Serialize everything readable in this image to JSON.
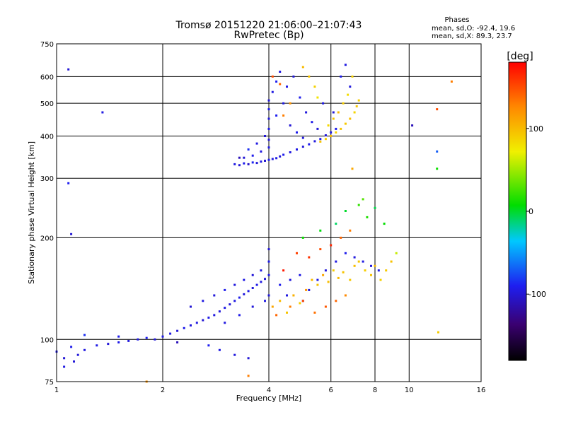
{
  "chart_data": {
    "type": "scatter",
    "title": "Tromsø 20151220 21:06:00–21:07:43",
    "subtitle": "RwPretec (Bp)",
    "xlabel": "Frequency [MHz]",
    "ylabel": "Stationary phase Virtual Height [km]",
    "x_scale": "log",
    "y_scale": "log",
    "xlim": [
      1,
      16
    ],
    "ylim": [
      75,
      750
    ],
    "x_ticks": [
      1,
      2,
      4,
      6,
      8,
      10,
      16
    ],
    "x_tick_labels": [
      "1",
      "2",
      "4",
      "6",
      "8",
      "10",
      "16"
    ],
    "y_ticks": [
      75,
      100,
      200,
      300,
      400,
      500,
      600,
      750
    ],
    "y_tick_labels": [
      "75",
      "100",
      "200",
      "300",
      "400",
      "500",
      "600",
      "750"
    ],
    "grid": true,
    "phases_box": {
      "title": "Phases",
      "line1": "mean, sd,O: -92.4, 19.6",
      "line2": "mean, sd,X:  89.3, 23.7"
    },
    "colorbar": {
      "label": "[deg]",
      "range": [
        -180,
        180
      ],
      "ticks": [
        100,
        0,
        -100
      ],
      "tick_labels": [
        "100",
        "0",
        "-100"
      ],
      "colors": [
        "#000000",
        "#3a0070",
        "#1e1ef0",
        "#00c8ff",
        "#00dd00",
        "#f0f000",
        "#ff8800",
        "#ff0000"
      ]
    },
    "series": [
      {
        "group": "F-region O-mode",
        "points": [
          [
            3.2,
            330,
            -95
          ],
          [
            3.3,
            328,
            -100
          ],
          [
            3.4,
            332,
            -92
          ],
          [
            3.5,
            330,
            -105
          ],
          [
            3.6,
            334,
            -88
          ],
          [
            3.7,
            333,
            -98
          ],
          [
            3.8,
            336,
            -95
          ],
          [
            3.9,
            338,
            -102
          ],
          [
            4.0,
            340,
            -90
          ],
          [
            4.1,
            342,
            -97
          ],
          [
            4.2,
            344,
            -93
          ],
          [
            4.3,
            348,
            -99
          ],
          [
            4.4,
            352,
            -91
          ],
          [
            4.6,
            358,
            -96
          ],
          [
            4.8,
            365,
            -94
          ],
          [
            5.0,
            372,
            -98
          ],
          [
            5.2,
            378,
            -92
          ],
          [
            5.4,
            386,
            -97
          ],
          [
            5.6,
            392,
            -93
          ],
          [
            5.8,
            402,
            -99
          ],
          [
            6.0,
            410,
            -95
          ],
          [
            6.2,
            420,
            -90
          ],
          [
            3.4,
            345,
            -100
          ],
          [
            3.6,
            350,
            -92
          ],
          [
            3.8,
            360,
            -96
          ],
          [
            4.0,
            370,
            -94
          ],
          [
            4.0,
            390,
            -98
          ],
          [
            4.0,
            420,
            -93
          ],
          [
            4.0,
            450,
            -97
          ],
          [
            4.0,
            480,
            -92
          ],
          [
            4.0,
            510,
            -99
          ],
          [
            4.1,
            540,
            -95
          ],
          [
            4.2,
            580,
            -90
          ],
          [
            4.3,
            620,
            -96
          ],
          [
            4.5,
            560,
            -94
          ],
          [
            4.7,
            600,
            -98
          ],
          [
            4.9,
            520,
            -92
          ],
          [
            5.1,
            470,
            -97
          ],
          [
            5.3,
            440,
            -93
          ],
          [
            5.5,
            420,
            -99
          ],
          [
            3.3,
            345,
            -110
          ],
          [
            3.5,
            365,
            -85
          ],
          [
            3.7,
            380,
            -95
          ],
          [
            3.9,
            400,
            -100
          ],
          [
            4.2,
            460,
            -90
          ],
          [
            4.4,
            500,
            -95
          ],
          [
            4.6,
            430,
            -100
          ],
          [
            4.8,
            410,
            -92
          ],
          [
            5.0,
            395,
            -97
          ],
          [
            5.7,
            500,
            -95
          ],
          [
            6.1,
            470,
            -100
          ],
          [
            6.4,
            600,
            -92
          ],
          [
            6.6,
            650,
            -95
          ],
          [
            6.8,
            560,
            -97
          ]
        ]
      },
      {
        "group": "F-region X-mode",
        "points": [
          [
            5.6,
            385,
            95
          ],
          [
            5.8,
            392,
            90
          ],
          [
            6.0,
            400,
            100
          ],
          [
            6.2,
            410,
            88
          ],
          [
            6.4,
            420,
            95
          ],
          [
            6.6,
            435,
            92
          ],
          [
            6.8,
            450,
            98
          ],
          [
            7.0,
            470,
            86
          ],
          [
            7.1,
            490,
            94
          ],
          [
            7.2,
            510,
            90
          ],
          [
            5.9,
            430,
            85
          ],
          [
            6.1,
            450,
            95
          ],
          [
            6.3,
            470,
            100
          ],
          [
            6.5,
            500,
            90
          ],
          [
            6.7,
            530,
            82
          ],
          [
            5.4,
            560,
            88
          ],
          [
            5.2,
            600,
            95
          ],
          [
            5.0,
            640,
            100
          ],
          [
            5.5,
            520,
            78
          ],
          [
            6.9,
            600,
            88
          ],
          [
            4.1,
            600,
            150
          ],
          [
            4.3,
            570,
            140
          ],
          [
            4.6,
            500,
            120
          ],
          [
            4.4,
            460,
            130
          ]
        ]
      },
      {
        "group": "E/F1 O-mode",
        "points": [
          [
            1.0,
            92,
            -95
          ],
          [
            1.05,
            88,
            -100
          ],
          [
            1.1,
            95,
            -92
          ],
          [
            1.15,
            90,
            -98
          ],
          [
            1.2,
            93,
            -96
          ],
          [
            1.3,
            96,
            -94
          ],
          [
            1.4,
            97,
            -99
          ],
          [
            1.5,
            98,
            -93
          ],
          [
            1.6,
            99,
            -97
          ],
          [
            1.7,
            100,
            -95
          ],
          [
            1.8,
            101,
            -90
          ],
          [
            1.9,
            100,
            -98
          ],
          [
            2.0,
            102,
            -94
          ],
          [
            2.1,
            104,
            -96
          ],
          [
            2.2,
            106,
            -99
          ],
          [
            2.3,
            108,
            -92
          ],
          [
            2.4,
            110,
            -97
          ],
          [
            2.5,
            112,
            -95
          ],
          [
            2.6,
            114,
            -100
          ],
          [
            2.7,
            116,
            -93
          ],
          [
            2.8,
            118,
            -96
          ],
          [
            2.9,
            121,
            -98
          ],
          [
            3.0,
            124,
            -94
          ],
          [
            3.1,
            127,
            -99
          ],
          [
            3.2,
            130,
            -95
          ],
          [
            3.3,
            133,
            -92
          ],
          [
            3.4,
            136,
            -97
          ],
          [
            3.5,
            139,
            -94
          ],
          [
            3.6,
            142,
            -98
          ],
          [
            3.7,
            145,
            -93
          ],
          [
            3.8,
            148,
            -96
          ],
          [
            3.9,
            151,
            -99
          ],
          [
            4.0,
            155,
            -95
          ],
          [
            2.4,
            125,
            -100
          ],
          [
            2.6,
            130,
            -95
          ],
          [
            2.8,
            135,
            -98
          ],
          [
            3.0,
            140,
            -92
          ],
          [
            3.2,
            145,
            -97
          ],
          [
            3.4,
            150,
            -94
          ],
          [
            3.6,
            155,
            -99
          ],
          [
            3.8,
            160,
            -95
          ],
          [
            3.0,
            112,
            -96
          ],
          [
            3.3,
            118,
            -93
          ],
          [
            3.6,
            125,
            -98
          ],
          [
            3.9,
            130,
            -95
          ],
          [
            4.0,
            135,
            -97
          ],
          [
            4.0,
            170,
            -92
          ],
          [
            4.0,
            185,
            -99
          ],
          [
            1.2,
            103,
            -85
          ],
          [
            1.5,
            102,
            -92
          ],
          [
            2.2,
            98,
            -110
          ],
          [
            2.7,
            96,
            -90
          ],
          [
            2.9,
            93,
            -95
          ],
          [
            3.2,
            90,
            -97
          ],
          [
            3.5,
            88,
            -100
          ],
          [
            1.05,
            83,
            -95
          ],
          [
            1.12,
            86,
            -99
          ],
          [
            4.3,
            145,
            -92
          ],
          [
            4.6,
            150,
            -97
          ],
          [
            4.9,
            155,
            -95
          ],
          [
            5.2,
            140,
            -99
          ],
          [
            5.5,
            150,
            -93
          ],
          [
            5.8,
            160,
            -98
          ],
          [
            6.2,
            170,
            -95
          ],
          [
            6.6,
            180,
            -92
          ],
          [
            7.0,
            175,
            -97
          ],
          [
            7.4,
            170,
            -95
          ],
          [
            7.8,
            165,
            -99
          ],
          [
            8.2,
            160,
            -93
          ],
          [
            4.5,
            135,
            -96
          ],
          [
            5.0,
            130,
            -94
          ]
        ]
      },
      {
        "group": "E/F1 X-mode",
        "points": [
          [
            4.1,
            125,
            110
          ],
          [
            4.3,
            130,
            100
          ],
          [
            4.5,
            120,
            95
          ],
          [
            4.7,
            135,
            105
          ],
          [
            4.9,
            128,
            90
          ],
          [
            5.1,
            140,
            120
          ],
          [
            5.3,
            150,
            100
          ],
          [
            5.5,
            145,
            95
          ],
          [
            5.7,
            155,
            110
          ],
          [
            5.9,
            148,
            98
          ],
          [
            6.1,
            160,
            90
          ],
          [
            6.3,
            152,
            100
          ],
          [
            6.5,
            158,
            95
          ],
          [
            6.8,
            150,
            92
          ],
          [
            7.0,
            165,
            98
          ],
          [
            7.2,
            170,
            94
          ],
          [
            7.5,
            160,
            90
          ],
          [
            7.8,
            155,
            95
          ],
          [
            8.0,
            165,
            100
          ],
          [
            8.3,
            150,
            88
          ],
          [
            8.6,
            160,
            92
          ],
          [
            8.9,
            170,
            96
          ],
          [
            4.2,
            118,
            140
          ],
          [
            4.6,
            125,
            130
          ],
          [
            5.0,
            130,
            150
          ],
          [
            5.4,
            120,
            135
          ],
          [
            5.8,
            125,
            145
          ],
          [
            6.2,
            130,
            140
          ],
          [
            6.6,
            135,
            125
          ],
          [
            5.2,
            175,
            160
          ],
          [
            5.6,
            185,
            150
          ],
          [
            6.0,
            190,
            165
          ],
          [
            4.4,
            160,
            170
          ],
          [
            4.8,
            180,
            155
          ],
          [
            6.4,
            200,
            140
          ],
          [
            6.8,
            210,
            130
          ],
          [
            5.0,
            200,
            10
          ],
          [
            5.6,
            210,
            5
          ],
          [
            6.2,
            220,
            -10
          ],
          [
            6.6,
            240,
            0
          ],
          [
            7.2,
            250,
            20
          ],
          [
            7.6,
            230,
            15
          ],
          [
            8.0,
            245,
            -5
          ],
          [
            8.5,
            220,
            8
          ],
          [
            7.4,
            260,
            30
          ],
          [
            9.2,
            180,
            60
          ]
        ]
      },
      {
        "group": "scattered",
        "points": [
          [
            1.08,
            630,
            -100
          ],
          [
            1.35,
            470,
            -95
          ],
          [
            1.08,
            290,
            -90
          ],
          [
            1.1,
            205,
            -100
          ],
          [
            12.0,
            480,
            150
          ],
          [
            12.0,
            360,
            -70
          ],
          [
            12.0,
            320,
            10
          ],
          [
            13.2,
            580,
            130
          ],
          [
            10.2,
            430,
            -110
          ],
          [
            12.1,
            105,
            90
          ],
          [
            6.9,
            320,
            110
          ],
          [
            3.5,
            78,
            130
          ],
          [
            1.8,
            75,
            120
          ]
        ]
      }
    ]
  }
}
